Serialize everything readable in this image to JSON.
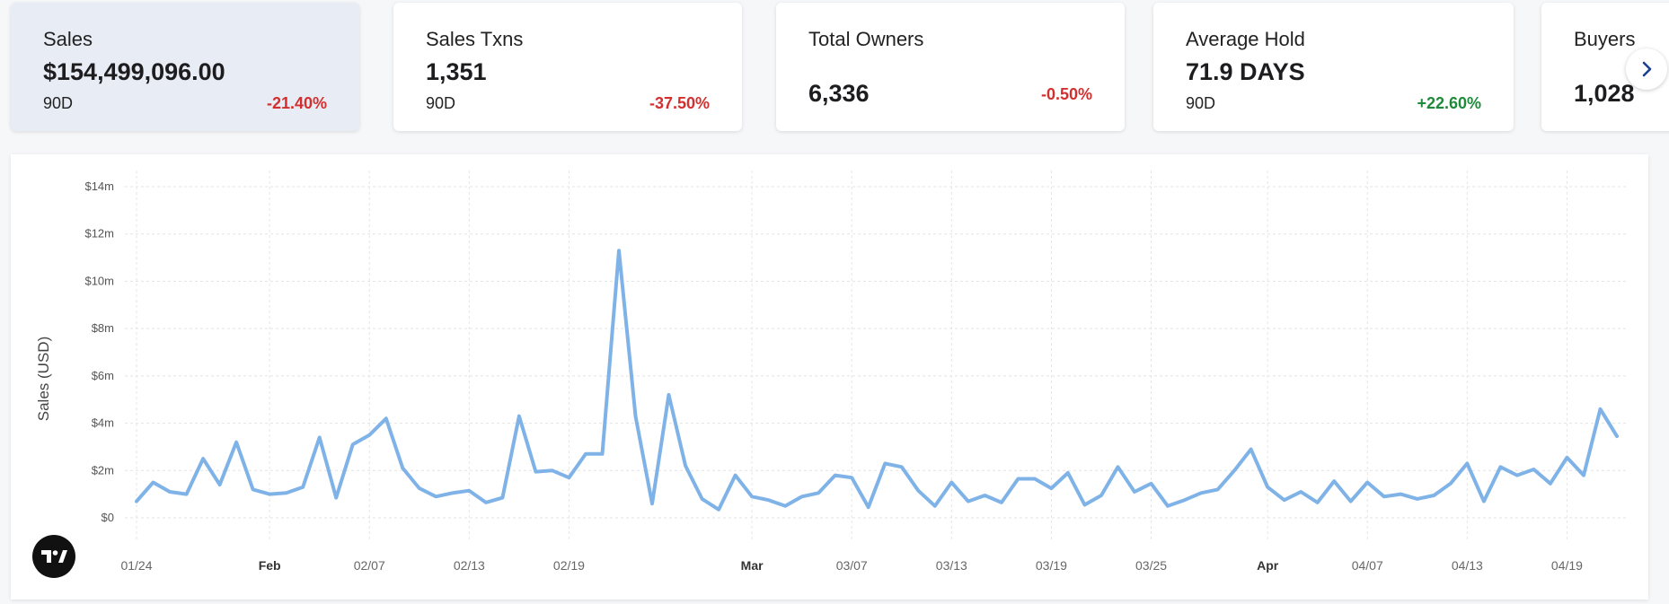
{
  "cards": [
    {
      "title": "Sales",
      "value": "$154,499,096.00",
      "period": "90D",
      "change": "-21.40%",
      "direction": "down",
      "active": true
    },
    {
      "title": "Sales Txns",
      "value": "1,351",
      "period": "90D",
      "change": "-37.50%",
      "direction": "down"
    },
    {
      "title": "Total Owners",
      "value": "6,336",
      "period": "",
      "change": "-0.50%",
      "direction": "down"
    },
    {
      "title": "Average Hold",
      "value": "71.9 DAYS",
      "period": "90D",
      "change": "+22.60%",
      "direction": "up"
    },
    {
      "title": "Buyers",
      "value": "1,028",
      "period": "",
      "change": ""
    }
  ],
  "next_icon": "chevron-right-icon",
  "logo_icon": "tradingview-logo",
  "colors": {
    "line": "#7fb3e8",
    "negative": "#d32f2f",
    "positive": "#1f8a3a",
    "active_card": "#e8ecf5",
    "chevron": "#1a3f8f"
  },
  "chart_data": {
    "type": "line",
    "ylabel": "Sales (USD)",
    "ylim": [
      -1,
      14.5
    ],
    "y_ticks": [
      {
        "value": 0,
        "label": "$0"
      },
      {
        "value": 2,
        "label": "$2m"
      },
      {
        "value": 4,
        "label": "$4m"
      },
      {
        "value": 6,
        "label": "$6m"
      },
      {
        "value": 8,
        "label": "$8m"
      },
      {
        "value": 10,
        "label": "$10m"
      },
      {
        "value": 12,
        "label": "$12m"
      },
      {
        "value": 14,
        "label": "$14m"
      }
    ],
    "x_ticks": [
      {
        "date": "2024-01-24",
        "label": "01/24",
        "bold": false
      },
      {
        "date": "2024-02-01",
        "label": "Feb",
        "bold": true
      },
      {
        "date": "2024-02-07",
        "label": "02/07",
        "bold": false
      },
      {
        "date": "2024-02-13",
        "label": "02/13",
        "bold": false
      },
      {
        "date": "2024-02-19",
        "label": "02/19",
        "bold": false
      },
      {
        "date": "2024-03-01",
        "label": "Mar",
        "bold": true
      },
      {
        "date": "2024-03-07",
        "label": "03/07",
        "bold": false
      },
      {
        "date": "2024-03-13",
        "label": "03/13",
        "bold": false
      },
      {
        "date": "2024-03-19",
        "label": "03/19",
        "bold": false
      },
      {
        "date": "2024-03-25",
        "label": "03/25",
        "bold": false
      },
      {
        "date": "2024-04-01",
        "label": "Apr",
        "bold": true
      },
      {
        "date": "2024-04-07",
        "label": "04/07",
        "bold": false
      },
      {
        "date": "2024-04-13",
        "label": "04/13",
        "bold": false
      },
      {
        "date": "2024-04-19",
        "label": "04/19",
        "bold": false
      }
    ],
    "series": [
      {
        "color": "#7fb3e8",
        "points": [
          [
            "2024-01-24",
            0.7
          ],
          [
            "2024-01-25",
            1.5
          ],
          [
            "2024-01-26",
            1.1
          ],
          [
            "2024-01-27",
            1.0
          ],
          [
            "2024-01-28",
            2.5
          ],
          [
            "2024-01-29",
            1.4
          ],
          [
            "2024-01-30",
            3.2
          ],
          [
            "2024-01-31",
            1.2
          ],
          [
            "2024-02-01",
            1.0
          ],
          [
            "2024-02-02",
            1.05
          ],
          [
            "2024-02-03",
            1.3
          ],
          [
            "2024-02-04",
            3.4
          ],
          [
            "2024-02-05",
            0.85
          ],
          [
            "2024-02-06",
            3.1
          ],
          [
            "2024-02-07",
            3.5
          ],
          [
            "2024-02-08",
            4.2
          ],
          [
            "2024-02-09",
            2.1
          ],
          [
            "2024-02-10",
            1.25
          ],
          [
            "2024-02-11",
            0.9
          ],
          [
            "2024-02-12",
            1.05
          ],
          [
            "2024-02-13",
            1.15
          ],
          [
            "2024-02-14",
            0.65
          ],
          [
            "2024-02-15",
            0.85
          ],
          [
            "2024-02-16",
            4.3
          ],
          [
            "2024-02-17",
            1.95
          ],
          [
            "2024-02-18",
            2.0
          ],
          [
            "2024-02-19",
            1.7
          ],
          [
            "2024-02-20",
            2.7
          ],
          [
            "2024-02-21",
            2.7
          ],
          [
            "2024-02-22",
            11.3
          ],
          [
            "2024-02-23",
            4.3
          ],
          [
            "2024-02-24",
            0.6
          ],
          [
            "2024-02-25",
            5.2
          ],
          [
            "2024-02-26",
            2.2
          ],
          [
            "2024-02-27",
            0.8
          ],
          [
            "2024-02-28",
            0.35
          ],
          [
            "2024-02-29",
            1.8
          ],
          [
            "2024-03-01",
            0.9
          ],
          [
            "2024-03-02",
            0.75
          ],
          [
            "2024-03-03",
            0.5
          ],
          [
            "2024-03-04",
            0.9
          ],
          [
            "2024-03-05",
            1.05
          ],
          [
            "2024-03-06",
            1.8
          ],
          [
            "2024-03-07",
            1.7
          ],
          [
            "2024-03-08",
            0.45
          ],
          [
            "2024-03-09",
            2.3
          ],
          [
            "2024-03-10",
            2.15
          ],
          [
            "2024-03-11",
            1.15
          ],
          [
            "2024-03-12",
            0.5
          ],
          [
            "2024-03-13",
            1.5
          ],
          [
            "2024-03-14",
            0.7
          ],
          [
            "2024-03-15",
            0.95
          ],
          [
            "2024-03-16",
            0.65
          ],
          [
            "2024-03-17",
            1.65
          ],
          [
            "2024-03-18",
            1.65
          ],
          [
            "2024-03-19",
            1.25
          ],
          [
            "2024-03-20",
            1.9
          ],
          [
            "2024-03-21",
            0.55
          ],
          [
            "2024-03-22",
            0.95
          ],
          [
            "2024-03-23",
            2.15
          ],
          [
            "2024-03-24",
            1.1
          ],
          [
            "2024-03-25",
            1.45
          ],
          [
            "2024-03-26",
            0.5
          ],
          [
            "2024-03-27",
            0.75
          ],
          [
            "2024-03-28",
            1.05
          ],
          [
            "2024-03-29",
            1.2
          ],
          [
            "2024-03-30",
            2.0
          ],
          [
            "2024-03-31",
            2.9
          ],
          [
            "2024-04-01",
            1.3
          ],
          [
            "2024-04-02",
            0.75
          ],
          [
            "2024-04-03",
            1.1
          ],
          [
            "2024-04-04",
            0.65
          ],
          [
            "2024-04-05",
            1.55
          ],
          [
            "2024-04-06",
            0.7
          ],
          [
            "2024-04-07",
            1.5
          ],
          [
            "2024-04-08",
            0.9
          ],
          [
            "2024-04-09",
            1.0
          ],
          [
            "2024-04-10",
            0.8
          ],
          [
            "2024-04-11",
            0.95
          ],
          [
            "2024-04-12",
            1.45
          ],
          [
            "2024-04-13",
            2.3
          ],
          [
            "2024-04-14",
            0.7
          ],
          [
            "2024-04-15",
            2.15
          ],
          [
            "2024-04-16",
            1.8
          ],
          [
            "2024-04-17",
            2.05
          ],
          [
            "2024-04-18",
            1.45
          ],
          [
            "2024-04-19",
            2.55
          ],
          [
            "2024-04-20",
            1.8
          ],
          [
            "2024-04-21",
            4.6
          ],
          [
            "2024-04-22",
            3.45
          ]
        ]
      }
    ],
    "grid": true
  }
}
